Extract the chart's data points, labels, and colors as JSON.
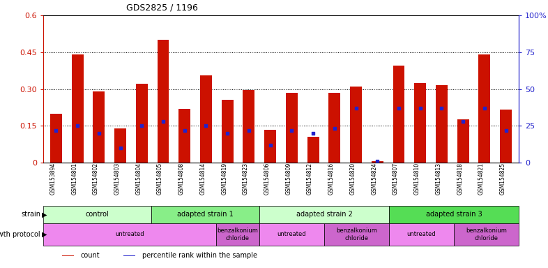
{
  "title": "GDS2825 / 1196",
  "samples": [
    "GSM153894",
    "GSM154801",
    "GSM154802",
    "GSM154803",
    "GSM154804",
    "GSM154805",
    "GSM154808",
    "GSM154814",
    "GSM154819",
    "GSM154823",
    "GSM154806",
    "GSM154809",
    "GSM154812",
    "GSM154816",
    "GSM154820",
    "GSM154824",
    "GSM154807",
    "GSM154810",
    "GSM154813",
    "GSM154818",
    "GSM154821",
    "GSM154825"
  ],
  "counts": [
    0.2,
    0.44,
    0.29,
    0.14,
    0.32,
    0.5,
    0.22,
    0.355,
    0.255,
    0.295,
    0.135,
    0.285,
    0.105,
    0.285,
    0.31,
    0.005,
    0.395,
    0.325,
    0.315,
    0.175,
    0.44,
    0.215
  ],
  "percentile_ranks_pct": [
    22,
    25,
    20,
    10,
    25,
    28,
    22,
    25,
    20,
    22,
    12,
    22,
    20,
    23,
    37,
    1,
    37,
    37,
    37,
    28,
    37,
    22
  ],
  "bar_color": "#cc1100",
  "marker_color": "#2222cc",
  "left_ylim": [
    0,
    0.6
  ],
  "right_ylim": [
    0,
    100
  ],
  "left_yticks": [
    0,
    0.15,
    0.3,
    0.45,
    0.6
  ],
  "left_yticklabels": [
    "0",
    "0.15",
    "0.30",
    "0.45",
    "0.6"
  ],
  "right_yticks": [
    0,
    25,
    50,
    75,
    100
  ],
  "right_yticklabels": [
    "0",
    "25",
    "50",
    "75",
    "100%"
  ],
  "hline_values": [
    0.15,
    0.3,
    0.45
  ],
  "strain_groups": [
    {
      "label": "control",
      "start": 0,
      "end": 5,
      "color": "#ccffcc"
    },
    {
      "label": "adapted strain 1",
      "start": 5,
      "end": 10,
      "color": "#88ee88"
    },
    {
      "label": "adapted strain 2",
      "start": 10,
      "end": 16,
      "color": "#ccffcc"
    },
    {
      "label": "adapted strain 3",
      "start": 16,
      "end": 22,
      "color": "#55dd55"
    }
  ],
  "protocol_groups": [
    {
      "label": "untreated",
      "start": 0,
      "end": 8,
      "color": "#ee88ee"
    },
    {
      "label": "benzalkonium\nchloride",
      "start": 8,
      "end": 10,
      "color": "#cc66cc"
    },
    {
      "label": "untreated",
      "start": 10,
      "end": 13,
      "color": "#ee88ee"
    },
    {
      "label": "benzalkonium\nchloride",
      "start": 13,
      "end": 16,
      "color": "#cc66cc"
    },
    {
      "label": "untreated",
      "start": 16,
      "end": 19,
      "color": "#ee88ee"
    },
    {
      "label": "benzalkonium\nchloride",
      "start": 19,
      "end": 22,
      "color": "#cc66cc"
    }
  ],
  "background_color": "#ffffff",
  "plot_bg_color": "#ffffff",
  "axis_left_color": "#cc1100",
  "axis_right_color": "#2222cc",
  "xlabels_bg": "#dddddd"
}
